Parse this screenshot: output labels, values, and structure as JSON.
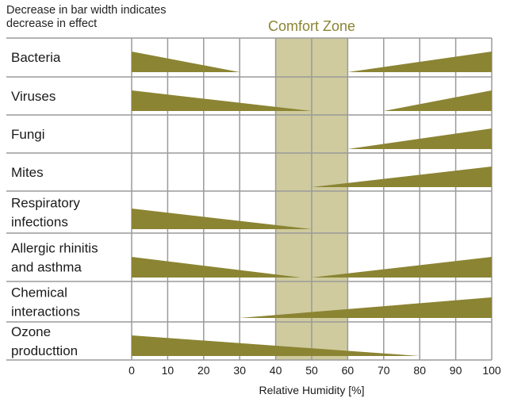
{
  "note": "Decrease in bar width indicates decrease in effect",
  "chart_data": {
    "type": "bar",
    "comfort_zone": {
      "label": "Comfort Zone",
      "range": [
        40,
        60
      ]
    },
    "xlabel": "Relative Humidity [%]",
    "xlim": [
      0,
      100
    ],
    "ticks": [
      0,
      10,
      20,
      30,
      40,
      50,
      60,
      70,
      80,
      90,
      100
    ],
    "grid": true,
    "colors": {
      "bar": "#8b8433",
      "zone": "#cfcb9e",
      "grid": "#9a9a9a"
    },
    "categories": [
      {
        "label": "Bacteria",
        "bars": [
          {
            "from": 0,
            "to": 30,
            "taper": "decreasing"
          },
          {
            "from": 60,
            "to": 100,
            "taper": "increasing"
          }
        ]
      },
      {
        "label": "Viruses",
        "bars": [
          {
            "from": 0,
            "to": 50,
            "taper": "decreasing"
          },
          {
            "from": 70,
            "to": 100,
            "taper": "increasing"
          }
        ]
      },
      {
        "label": "Fungi",
        "bars": [
          {
            "from": 60,
            "to": 100,
            "taper": "increasing"
          }
        ]
      },
      {
        "label": "Mites",
        "bars": [
          {
            "from": 50,
            "to": 100,
            "taper": "increasing"
          }
        ]
      },
      {
        "label": "Respiratory infections",
        "bars": [
          {
            "from": 0,
            "to": 50,
            "taper": "decreasing"
          }
        ]
      },
      {
        "label": "Allergic rhinitis and asthma",
        "bars": [
          {
            "from": 0,
            "to": 47,
            "taper": "decreasing"
          },
          {
            "from": 50,
            "to": 100,
            "taper": "increasing"
          }
        ]
      },
      {
        "label": "Chemical interactions",
        "bars": [
          {
            "from": 30,
            "to": 100,
            "taper": "increasing"
          }
        ]
      },
      {
        "label": "Ozone producttion",
        "bars": [
          {
            "from": 0,
            "to": 80,
            "taper": "decreasing"
          }
        ]
      }
    ]
  }
}
